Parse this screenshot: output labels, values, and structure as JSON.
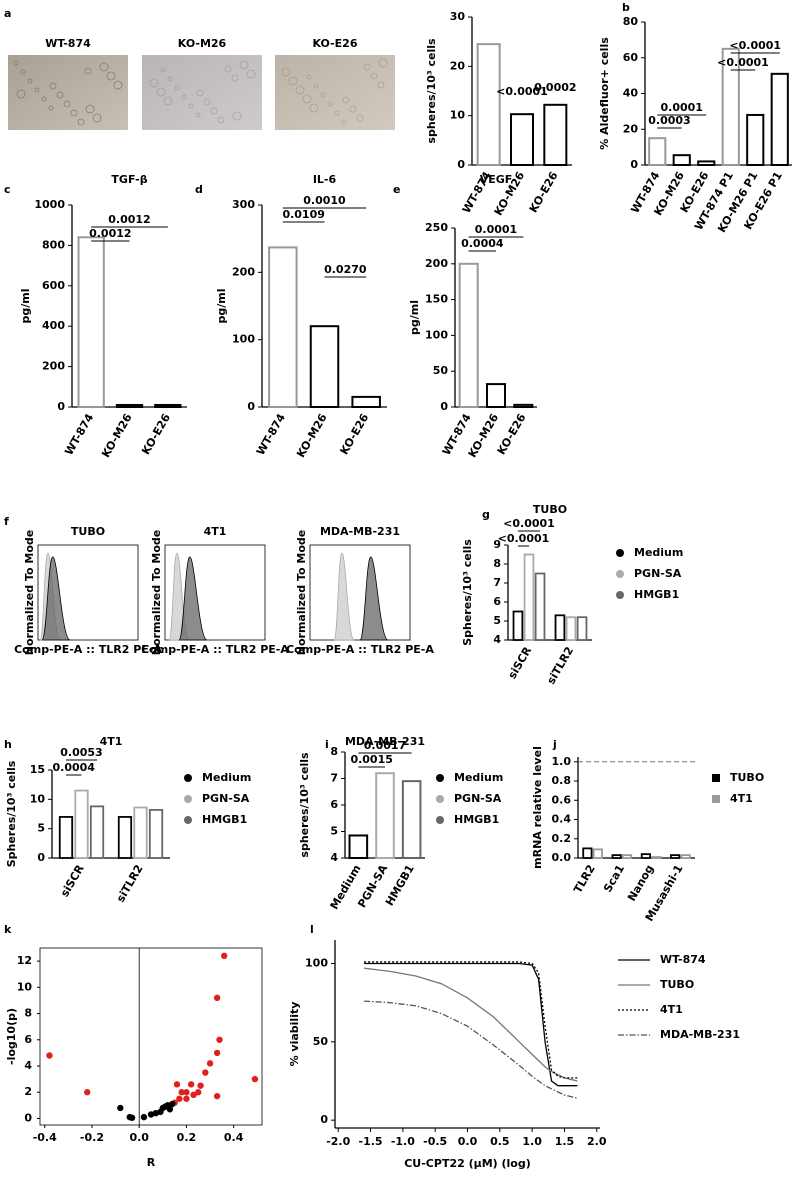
{
  "chart_data": [
    {
      "type": "images",
      "panel": "a",
      "labels": [
        "WT-874",
        "KO-M26",
        "KO-E26"
      ]
    },
    {
      "type": "bar",
      "ylabel": "spheres/10³ cells",
      "categories": [
        "WT-874",
        "KO-M26",
        "KO-E26"
      ],
      "values": [
        24.5,
        10.3,
        12.2
      ],
      "colors": [
        "#999999",
        "#000000",
        "#000000"
      ],
      "ylim": [
        0,
        30
      ],
      "yticks": [
        0,
        10,
        20,
        30
      ],
      "annotations": [
        "<0.0001",
        "0.0002"
      ]
    },
    {
      "type": "bar",
      "panel": "b",
      "ylabel": "% Aldefluor+ cells",
      "categories": [
        "WT-874",
        "KO-M26",
        "KO-E26",
        "WT-874 P1",
        "KO-M26 P1",
        "KO-E26 P1"
      ],
      "values": [
        15,
        5.5,
        2,
        65,
        28,
        51
      ],
      "colors": [
        "#999999",
        "#000000",
        "#000000",
        "#999999",
        "#000000",
        "#000000"
      ],
      "ylim": [
        0,
        80
      ],
      "yticks": [
        0,
        20,
        40,
        60,
        80
      ],
      "annotations": [
        "<0.0001",
        "<0.0001",
        "0.0001",
        "0.0003"
      ]
    },
    {
      "type": "bar",
      "panel": "c",
      "title": "TGF-β",
      "ylabel": "pg/ml",
      "categories": [
        "WT-874",
        "KO-M26",
        "KO-E26"
      ],
      "values": [
        840,
        10,
        10
      ],
      "colors": [
        "#999999",
        "#000000",
        "#000000"
      ],
      "ylim": [
        0,
        1000
      ],
      "yticks": [
        0,
        200,
        400,
        600,
        800,
        1000
      ],
      "annotations": [
        "0.0012",
        "0.0012"
      ]
    },
    {
      "type": "bar",
      "panel": "d",
      "title": "IL-6",
      "ylabel": "pg/ml",
      "categories": [
        "WT-874",
        "KO-M26",
        "KO-E26"
      ],
      "values": [
        237,
        120,
        15
      ],
      "colors": [
        "#999999",
        "#000000",
        "#000000"
      ],
      "ylim": [
        0,
        300
      ],
      "yticks": [
        0,
        100,
        200,
        300
      ],
      "annotations": [
        "0.0010",
        "0.0109",
        "0.0270"
      ]
    },
    {
      "type": "bar",
      "panel": "e",
      "title": "VEGF",
      "ylabel": "pg/ml",
      "categories": [
        "WT-874",
        "KO-M26",
        "KO-E26"
      ],
      "values": [
        200,
        32,
        3
      ],
      "colors": [
        "#999999",
        "#000000",
        "#000000"
      ],
      "ylim": [
        0,
        250
      ],
      "yticks": [
        0,
        50,
        100,
        150,
        200,
        250
      ],
      "annotations": [
        "0.0001",
        "0.0004"
      ]
    },
    {
      "type": "flow",
      "panel": "f",
      "titles": [
        "TUBO",
        "4T1",
        "MDA-MB-231"
      ],
      "ylabel": "Normalized To Mode",
      "xlabel": "Comp-PE-A :: TLR2 PE-A"
    },
    {
      "type": "grouped-bar",
      "panel": "g",
      "title": "TUBO",
      "ylabel": "Spheres/10³ cells",
      "categories": [
        "siSCR",
        "siTLR2"
      ],
      "series": [
        {
          "name": "Medium",
          "color": "#000000",
          "values": [
            5.5,
            5.3
          ]
        },
        {
          "name": "PGN-SA",
          "color": "#aaaaaa",
          "values": [
            8.5,
            5.2
          ]
        },
        {
          "name": "HMGB1",
          "color": "#666666",
          "values": [
            7.5,
            5.2
          ]
        }
      ],
      "marker": "circle",
      "ylim": [
        4,
        9
      ],
      "yticks": [
        4,
        5,
        6,
        7,
        8,
        9
      ],
      "annotations": [
        "<0.0001",
        "<0.0001"
      ]
    },
    {
      "type": "grouped-bar",
      "panel": "h",
      "title": "4T1",
      "ylabel": "Spheres/10³ cells",
      "categories": [
        "siSCR",
        "siTLR2"
      ],
      "series": [
        {
          "name": "Medium",
          "color": "#000000",
          "values": [
            7,
            7
          ]
        },
        {
          "name": "PGN-SA",
          "color": "#aaaaaa",
          "values": [
            11.5,
            8.6
          ]
        },
        {
          "name": "HMGB1",
          "color": "#666666",
          "values": [
            8.8,
            8.2
          ]
        }
      ],
      "marker": "circle",
      "ylim": [
        0,
        15
      ],
      "yticks": [
        0,
        5,
        10,
        15
      ],
      "annotations": [
        "0.0053",
        "0.0004"
      ]
    },
    {
      "type": "bar",
      "panel": "i",
      "title": "MDA-MB-231",
      "ylabel": "spheres/10³ cells",
      "categories": [
        "Medium",
        "PGN-SA",
        "HMGB1"
      ],
      "values": [
        4.85,
        7.2,
        6.9
      ],
      "colors": [
        "#000000",
        "#aaaaaa",
        "#666666"
      ],
      "legend": true,
      "ylim": [
        4,
        8
      ],
      "yticks": [
        4,
        5,
        6,
        7,
        8
      ],
      "annotations": [
        "0.0017",
        "0.0015"
      ]
    },
    {
      "type": "grouped-bar",
      "panel": "j",
      "ylabel": "mRNA relative level",
      "categories": [
        "TLR2",
        "Sca1",
        "Nanog",
        "Musashi-1"
      ],
      "series": [
        {
          "name": "TUBO",
          "color": "#000000",
          "values": [
            0.1,
            0.03,
            0.04,
            0.03
          ]
        },
        {
          "name": "4T1",
          "color": "#999999",
          "values": [
            0.09,
            0.03,
            0.01,
            0.03
          ]
        }
      ],
      "marker": "square",
      "reference_line": 1,
      "ylim": [
        0,
        1.05
      ],
      "yticks": [
        {
          "value": 0,
          "label": "0.0"
        },
        0.2,
        0.4,
        0.6,
        0.8,
        {
          "value": 1,
          "label": "1.0"
        }
      ],
      "annotations": []
    },
    {
      "type": "scatter",
      "panel": "k",
      "xlabel": "R",
      "ylabel": "-log10(p)",
      "xlim": [
        -0.42,
        0.52
      ],
      "ylim": [
        -0.5,
        13
      ],
      "xticks": [
        -0.4,
        -0.2,
        {
          "value": 0,
          "label": "0.0"
        },
        0.2,
        0.4
      ],
      "yticks": [
        0,
        2,
        4,
        6,
        8,
        10,
        12
      ],
      "series": [
        {
          "color": "#e0201c",
          "x": [
            -0.38,
            -0.22,
            0.49,
            0.36,
            0.33,
            0.34,
            0.33,
            0.3,
            0.28,
            0.26,
            0.22,
            0.25,
            0.2,
            0.18,
            0.16,
            0.17,
            0.15,
            0.2,
            0.23,
            0.33
          ],
          "y": [
            4.8,
            2.0,
            3.0,
            12.4,
            9.2,
            6.0,
            5.0,
            4.2,
            3.5,
            2.5,
            2.6,
            2.0,
            1.5,
            2.0,
            2.6,
            1.5,
            1.2,
            2.0,
            1.8,
            1.7
          ]
        },
        {
          "color": "#000000",
          "x": [
            -0.08,
            -0.04,
            -0.03,
            0.02,
            0.05,
            0.07,
            0.09,
            0.1,
            0.12,
            0.13,
            0.11,
            0.14
          ],
          "y": [
            0.8,
            0.1,
            0.05,
            0.1,
            0.3,
            0.4,
            0.5,
            0.8,
            1.0,
            0.7,
            0.9,
            1.1
          ]
        }
      ]
    },
    {
      "type": "line",
      "panel": "l",
      "xlabel": "CU-CPT22 (μM) (log)",
      "ylabel": "% viability",
      "xlim": [
        -2.05,
        2.05
      ],
      "ylim": [
        -5,
        115
      ],
      "xticks": [
        {
          "value": -2,
          "label": "-2.0"
        },
        -1.5,
        {
          "value": -1,
          "label": "-1.0"
        },
        -0.5,
        {
          "value": 0,
          "label": "0.0"
        },
        0.5,
        {
          "value": 1,
          "label": "1.0"
        },
        1.5,
        {
          "value": 2,
          "label": "2.0"
        }
      ],
      "yticks": [
        0,
        50,
        100
      ],
      "x": [
        -1.6,
        -1.2,
        -0.8,
        -0.4,
        0,
        0.4,
        0.8,
        1.0,
        1.1,
        1.2,
        1.3,
        1.4,
        1.5,
        1.6,
        1.7
      ],
      "series": [
        {
          "name": "WT-874",
          "color": "#000000",
          "dash": "solid",
          "values": [
            100,
            100,
            100,
            100,
            100,
            100,
            100,
            99,
            90,
            50,
            25,
            22,
            22,
            22,
            22
          ]
        },
        {
          "name": "TUBO",
          "color": "#777777",
          "dash": "solid",
          "values": [
            97,
            95,
            92,
            87,
            78,
            66,
            50,
            42,
            38,
            34,
            31,
            29,
            27,
            26,
            25
          ]
        },
        {
          "name": "4T1",
          "color": "#000000",
          "dash": "dotted",
          "values": [
            101,
            101,
            101,
            101,
            101,
            101,
            101,
            100,
            94,
            60,
            32,
            28,
            27,
            27,
            27
          ]
        },
        {
          "name": "MDA-MB-231",
          "color": "#555555",
          "dash": "dashdot",
          "values": [
            76,
            75,
            73,
            68,
            60,
            48,
            35,
            28,
            25,
            22,
            20,
            18,
            16,
            15,
            14
          ]
        }
      ]
    }
  ]
}
